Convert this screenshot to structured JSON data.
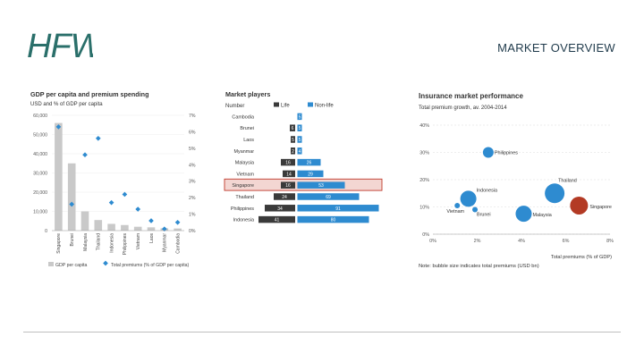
{
  "brand": {
    "logo_text": "HFW",
    "logo_color": "#2a6f6a"
  },
  "header": {
    "title": "MARKET OVERVIEW"
  },
  "colors": {
    "bar_blue": "#2e8bd0",
    "bar_dark": "#3a3a3a",
    "bar_grey": "#c9c9c9",
    "marker_blue": "#2e8bd0",
    "highlight_red": "#c0392b",
    "highlight_fill": "#f3d6d2",
    "bubble_red": "#b33a24"
  },
  "chart_data": [
    {
      "type": "bar",
      "title": "GDP per capita and premium spending",
      "subtitle": "USD and % of GDP per capita",
      "categories": [
        "Singapore",
        "Brunei",
        "Malaysia",
        "Thailand",
        "Indonesia",
        "Philippines",
        "Vietnam",
        "Laos",
        "Myanmar",
        "Cambodia"
      ],
      "series": [
        {
          "name": "GDP per capita",
          "axis": "left",
          "values": [
            56000,
            35000,
            10000,
            5500,
            3500,
            2900,
            2000,
            1700,
            1200,
            1100
          ]
        },
        {
          "name": "Total premiums (% of GDP per capita)",
          "axis": "right",
          "kind": "marker",
          "values": [
            6.3,
            1.6,
            4.6,
            5.6,
            1.7,
            2.2,
            1.3,
            0.6,
            0.1,
            0.5
          ]
        }
      ],
      "left_axis": {
        "ticks": [
          "0",
          "10,000",
          "20,000",
          "30,000",
          "40,000",
          "50,000",
          "60,000"
        ],
        "ylim": [
          0,
          60000
        ]
      },
      "right_axis": {
        "ticks": [
          "0%",
          "1%",
          "2%",
          "3%",
          "4%",
          "5%",
          "6%",
          "7%"
        ],
        "ylim": [
          0,
          7
        ]
      },
      "legend": [
        "GDP per capita",
        "Total premiums (% of GDP per capita)"
      ]
    },
    {
      "type": "bar",
      "orientation": "horizontal",
      "title": "Market players",
      "subtitle": "Number",
      "categories": [
        "Cambodia",
        "Brunei",
        "Laos",
        "Myanmar",
        "Malaysia",
        "Vietnam",
        "Singapore",
        "Thailand",
        "Philippines",
        "Indonesia"
      ],
      "highlight": "Singapore",
      "series": [
        {
          "name": "Life",
          "values": [
            null,
            6,
            5,
            2,
            16,
            14,
            16,
            24,
            34,
            41
          ]
        },
        {
          "name": "Non-life",
          "values": [
            5,
            5,
            5,
            4,
            26,
            29,
            53,
            69,
            91,
            80
          ]
        }
      ],
      "value_labels": {
        "Life": [
          "",
          "6",
          "5",
          "2",
          "16",
          "14",
          "16",
          "24",
          "34",
          "41"
        ],
        "Non-life": [
          "5",
          "5",
          "5",
          "4",
          "26",
          "29",
          "53",
          "69",
          "91",
          "80"
        ]
      },
      "xlim": [
        0,
        140
      ]
    },
    {
      "type": "scatter",
      "variant": "bubble",
      "title": "Insurance market performance",
      "subtitle": "Total premium growth, av. 2004-2014",
      "xlabel": "Total premiums (% of GDP)",
      "ylabel": "",
      "xlim": [
        0,
        8
      ],
      "ylim": [
        0,
        40
      ],
      "x_ticks": [
        "0%",
        "2%",
        "4%",
        "6%",
        "8%"
      ],
      "y_ticks": [
        "0%",
        "10%",
        "20%",
        "30%",
        "40%"
      ],
      "points": [
        {
          "label": "Philippines",
          "x": 2.5,
          "y": 30,
          "size": 6
        },
        {
          "label": "Indonesia",
          "x": 1.6,
          "y": 13,
          "size": 9
        },
        {
          "label": "Vietnam",
          "x": 1.1,
          "y": 10.5,
          "size": 3
        },
        {
          "label": "Brunei",
          "x": 1.9,
          "y": 9,
          "size": 3
        },
        {
          "label": "Malaysia",
          "x": 4.1,
          "y": 7.5,
          "size": 9
        },
        {
          "label": "Thailand",
          "x": 5.5,
          "y": 15,
          "size": 11
        },
        {
          "label": "Singapore",
          "x": 6.6,
          "y": 10.5,
          "size": 10,
          "highlight": true
        }
      ],
      "note": "Note: bubble size indicates total premiums (USD bn)"
    }
  ]
}
